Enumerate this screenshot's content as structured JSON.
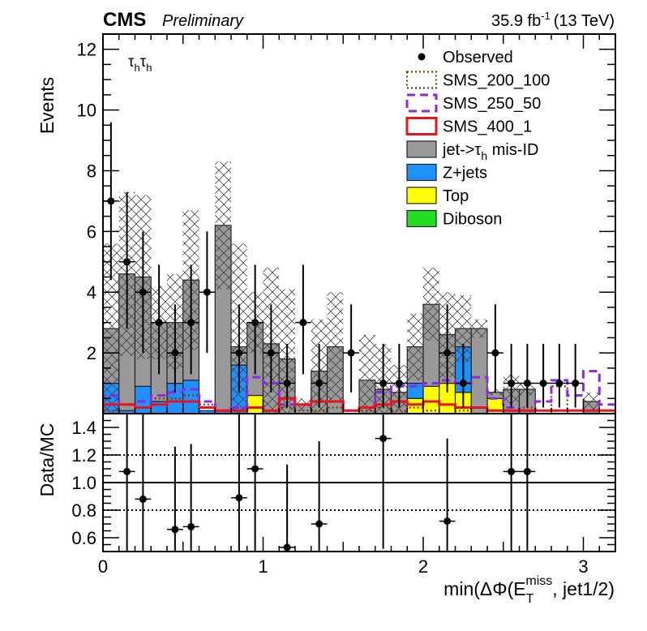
{
  "header": {
    "experiment": "CMS",
    "status": "Preliminary",
    "lumi_value": "35.9 fb",
    "lumi_exp": "-1",
    "energy": "(13 TeV)"
  },
  "channel": {
    "base": "τ",
    "sub": "h"
  },
  "legend": [
    {
      "label": "Observed",
      "style": "marker",
      "color": "#000000"
    },
    {
      "label": "SMS_200_100",
      "style": "dotted",
      "color": "#7a3b00"
    },
    {
      "label": "SMS_250_50",
      "style": "dashed",
      "color": "#8a2be2"
    },
    {
      "label": "SMS_400_1",
      "style": "line",
      "color": "#e8141d"
    },
    {
      "label_pre": "jet->",
      "label_tau": "τ",
      "label_sub": "h",
      "label_post": " mis-ID",
      "label": "jet->τh mis-ID",
      "style": "fill",
      "color": "#999999"
    },
    {
      "label": "Z+jets",
      "style": "fill",
      "color": "#1e90ff"
    },
    {
      "label": "Top",
      "style": "fill",
      "color": "#ffff00"
    },
    {
      "label": "Diboson",
      "style": "fill",
      "color": "#22dd22"
    }
  ],
  "axes": {
    "y_top_label": "Events",
    "y_bottom_label": "Data/MC",
    "x_label_pre": "min(ΔΦ(E",
    "x_label_sub": "T",
    "x_label_sup": "miss",
    "x_label_post": ", jet1/2)"
  },
  "chart_data": [
    {
      "type": "bar",
      "panel": "main",
      "stacked": true,
      "xlim": [
        0,
        3.2
      ],
      "ylim": [
        0,
        12.5
      ],
      "bin_width": 0.1,
      "x": [
        0.05,
        0.15,
        0.25,
        0.35,
        0.45,
        0.55,
        0.65,
        0.75,
        0.85,
        0.95,
        1.05,
        1.15,
        1.25,
        1.35,
        1.45,
        1.55,
        1.65,
        1.75,
        1.85,
        1.95,
        2.05,
        2.15,
        2.25,
        2.35,
        2.45,
        2.55,
        2.65,
        2.75,
        2.85,
        2.95,
        3.05,
        3.15
      ],
      "yticks": [
        2,
        4,
        6,
        8,
        10,
        12
      ],
      "xticks": [
        0,
        1,
        2,
        3
      ],
      "series": [
        {
          "name": "Diboson",
          "color": "#22dd22",
          "values": [
            0,
            0,
            0,
            0,
            0,
            0,
            0,
            0,
            0,
            0,
            0,
            0,
            0,
            0,
            0,
            0,
            0,
            0,
            0,
            0,
            0,
            0,
            0,
            0,
            0,
            0,
            0,
            0,
            0,
            0,
            0,
            0
          ]
        },
        {
          "name": "Top",
          "color": "#ffff00",
          "values": [
            0,
            0,
            0,
            0,
            0,
            0,
            0,
            0,
            0,
            0.6,
            0,
            0,
            0,
            0,
            0,
            0,
            0,
            0,
            0,
            0.5,
            0.9,
            1.0,
            0.7,
            0,
            0.5,
            0,
            0,
            0,
            0,
            0,
            0,
            0
          ]
        },
        {
          "name": "Z+jets",
          "color": "#1e90ff",
          "values": [
            1.0,
            0.1,
            0.9,
            0.4,
            1.0,
            1.1,
            0.1,
            0.1,
            1.6,
            0,
            0,
            0,
            0,
            0,
            0,
            0,
            0,
            0,
            0,
            0.5,
            0,
            0,
            1.5,
            0,
            0,
            0,
            0,
            0,
            0,
            0,
            0,
            0
          ]
        },
        {
          "name": "jet->τh mis-ID",
          "color": "#999999",
          "values": [
            1.8,
            4.5,
            3.6,
            2.6,
            2.0,
            3.3,
            0,
            6.1,
            0.6,
            2.4,
            2.3,
            1.8,
            0.3,
            1.4,
            2.2,
            0,
            1.1,
            0.8,
            0.7,
            1.2,
            2.7,
            1.6,
            0.6,
            2.8,
            0.2,
            0.8,
            0.8,
            0,
            0,
            0,
            0.4,
            0
          ]
        }
      ],
      "uncertainty_band_top": [
        5.6,
        7.3,
        7.2,
        4.2,
        4.6,
        6.7,
        0,
        8.3,
        5.6,
        4.0,
        4.8,
        4.1,
        0.5,
        3.1,
        4.0,
        0,
        2.6,
        2.3,
        1.6,
        3.3,
        4.8,
        4.0,
        3.9,
        3.1,
        0.8,
        1.3,
        1.0,
        0,
        0,
        0,
        0.7,
        0
      ],
      "signals": [
        {
          "name": "SMS_200_100",
          "values": [
            0.1,
            0.3,
            0.2,
            0.5,
            0.5,
            0.6,
            0.3,
            0.1,
            0.1,
            0.2,
            0.1,
            0.2,
            0.1,
            0.1,
            0.2,
            0.1,
            0.1,
            0.2,
            0.1,
            0.2,
            0.1,
            0.3,
            0.1,
            0.2,
            0.1,
            0.1,
            0.2,
            0.1,
            0.9,
            0.1,
            0.1,
            0.1
          ]
        },
        {
          "name": "SMS_250_50",
          "values": [
            0.6,
            0.3,
            0.4,
            0.6,
            0.7,
            0.8,
            0.4,
            0.1,
            0.2,
            1.2,
            1.0,
            0.3,
            0.3,
            0.4,
            0.4,
            0.1,
            0.2,
            0.7,
            0.9,
            0.9,
            1.0,
            1.1,
            1.0,
            1.2,
            0.5,
            0.2,
            0.1,
            0.4,
            1.1,
            0.6,
            1.4,
            0.3
          ]
        },
        {
          "name": "SMS_400_1",
          "values": [
            0.3,
            0.3,
            0.2,
            0.3,
            0.4,
            0.4,
            0.2,
            0.1,
            0.1,
            0.2,
            0.1,
            0.5,
            0.3,
            0.4,
            0.4,
            0.1,
            0.2,
            0.3,
            0.4,
            0.3,
            0.4,
            0.3,
            0.2,
            0.2,
            0.1,
            0.1,
            0.1,
            0.1,
            0.1,
            0.1,
            0.1,
            0.1
          ]
        }
      ],
      "observed": {
        "x": [
          0.05,
          0.15,
          0.25,
          0.35,
          0.45,
          0.55,
          0.65,
          0.85,
          0.95,
          1.05,
          1.15,
          1.25,
          1.35,
          1.55,
          1.75,
          1.85,
          2.15,
          2.25,
          2.45,
          2.55,
          2.65,
          2.75,
          2.85,
          2.95
        ],
        "y": [
          7,
          5,
          4,
          3,
          2,
          3,
          4,
          2,
          3,
          2,
          1,
          3,
          1,
          2,
          1,
          1,
          2,
          1,
          2,
          1,
          1,
          1,
          1,
          1
        ],
        "err_up": [
          2.6,
          2.3,
          2.0,
          1.9,
          1.6,
          1.9,
          2.0,
          1.6,
          1.9,
          1.6,
          1.3,
          1.9,
          1.3,
          1.6,
          1.3,
          1.3,
          1.6,
          1.3,
          1.6,
          1.3,
          1.3,
          1.3,
          1.3,
          1.3
        ],
        "err_down": [
          2.6,
          2.2,
          2.0,
          1.7,
          1.3,
          1.7,
          2.0,
          1.3,
          1.7,
          1.3,
          0.8,
          1.7,
          0.8,
          1.3,
          0.8,
          0.8,
          1.3,
          0.8,
          1.3,
          0.8,
          0.8,
          0.8,
          0.8,
          0.8
        ]
      }
    },
    {
      "type": "scatter",
      "panel": "ratio",
      "xlim": [
        0,
        3.2
      ],
      "ylim": [
        0.5,
        1.5
      ],
      "yticks": [
        0.6,
        0.8,
        1.0,
        1.2,
        1.4
      ],
      "ytick_labels": [
        "0.6",
        "0.8",
        "1.0",
        "1.2",
        "1.4"
      ],
      "xticks": [
        0,
        1,
        2,
        3
      ],
      "reference_lines": [
        0.8,
        1.0,
        1.2
      ],
      "x": [
        0.15,
        0.25,
        0.45,
        0.55,
        0.85,
        0.95,
        1.15,
        1.35,
        1.75,
        2.15,
        2.55,
        2.65
      ],
      "y": [
        1.08,
        0.88,
        0.66,
        0.68,
        0.89,
        1.1,
        0.53,
        0.7,
        1.32,
        0.72,
        1.08,
        1.08
      ],
      "err_up": [
        0.6,
        0.7,
        0.6,
        0.6,
        0.7,
        0.6,
        0.6,
        0.6,
        0.6,
        0.6,
        0.6,
        0.6
      ],
      "err_down": [
        0.6,
        0.5,
        0.2,
        0.2,
        0.5,
        0.6,
        0.1,
        0.3,
        0.8,
        0.3,
        0.6,
        0.6
      ]
    }
  ]
}
